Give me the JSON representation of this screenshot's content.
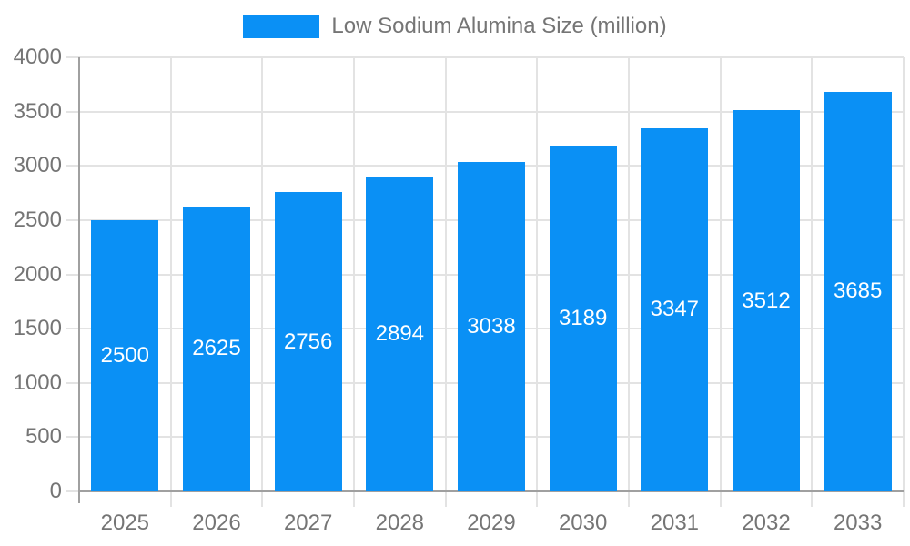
{
  "chart_data": {
    "type": "bar",
    "title": "",
    "legend": "Low Sodium Alumina Size (million)",
    "legend_position": "top-center",
    "categories": [
      "2025",
      "2026",
      "2027",
      "2028",
      "2029",
      "2030",
      "2031",
      "2032",
      "2033"
    ],
    "values": [
      2500,
      2625,
      2756,
      2894,
      3038,
      3189,
      3347,
      3512,
      3685
    ],
    "xlabel": "",
    "ylabel": "",
    "ylim": [
      0,
      4000
    ],
    "yticks": [
      0,
      500,
      1000,
      1500,
      2000,
      2500,
      3000,
      3500,
      4000
    ],
    "grid": true,
    "value_labels": "inside-center",
    "colors": {
      "bar": "#0a90f5",
      "value_label": "#ffffff",
      "axis_line": "#a0a0a0",
      "gridline": "#e3e3e3",
      "tick_label": "#757575",
      "background": "#ffffff"
    }
  }
}
